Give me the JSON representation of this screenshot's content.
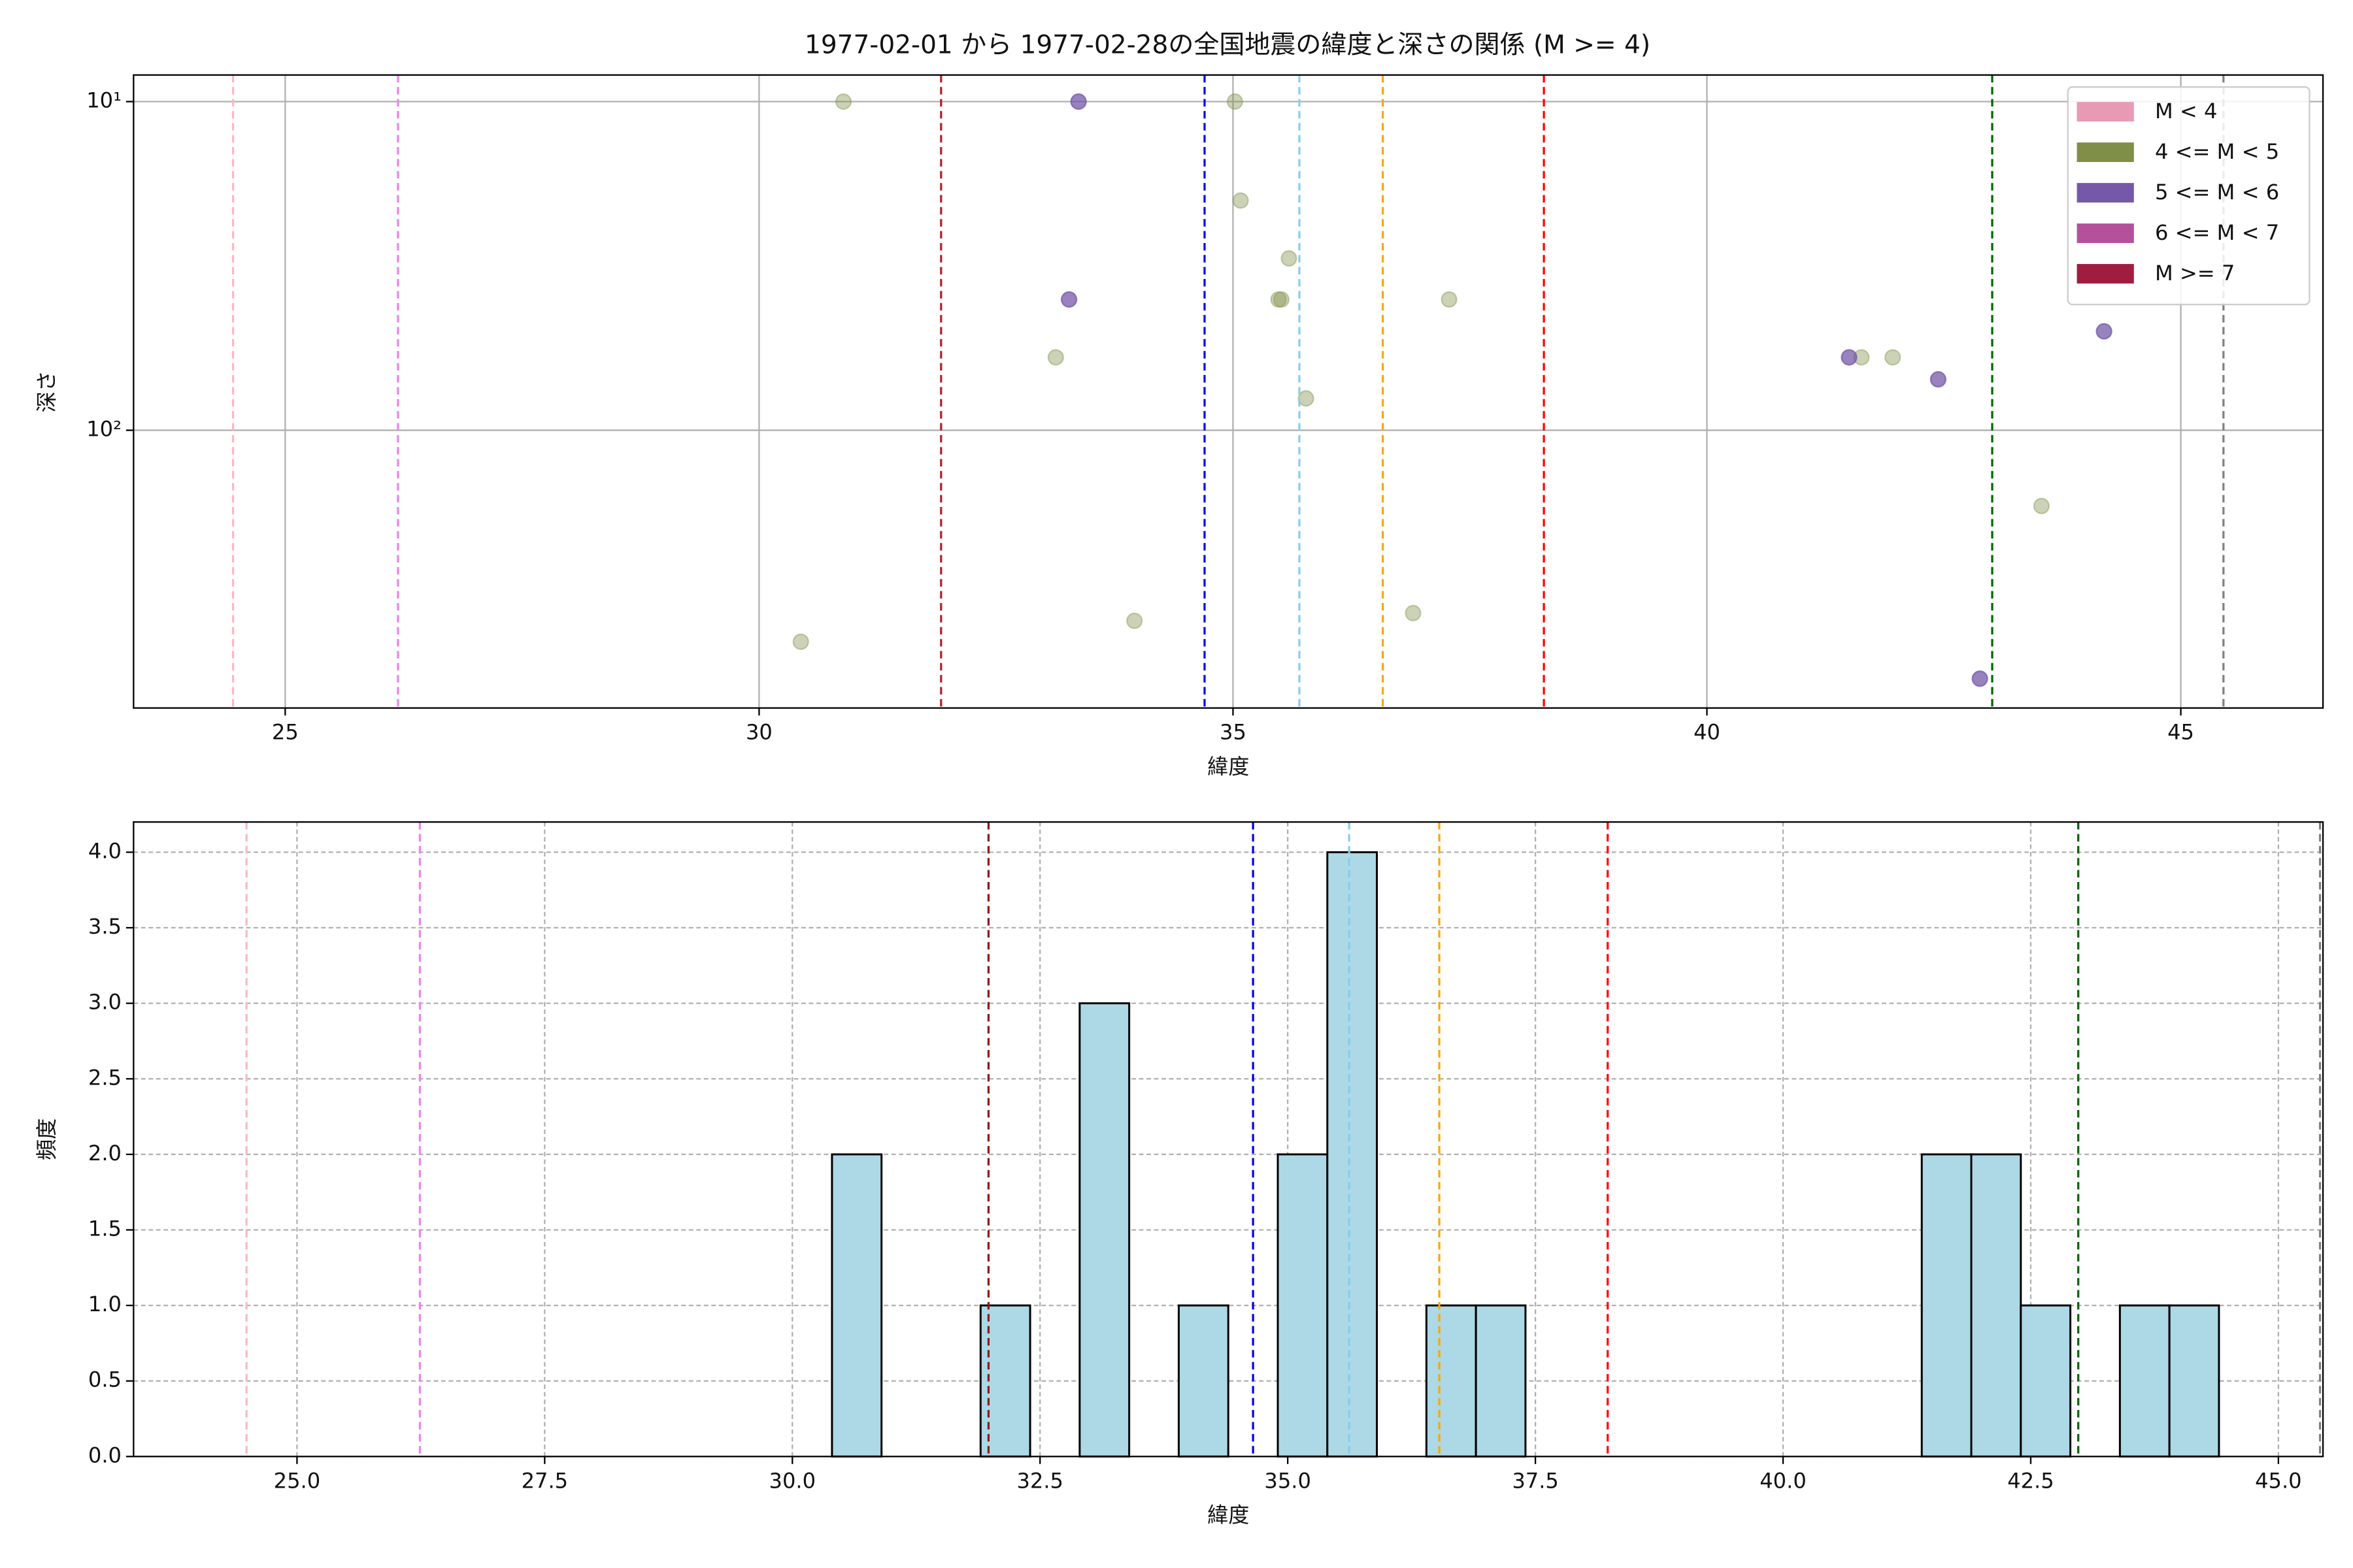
{
  "chart_data": [
    {
      "type": "scatter",
      "title": "1977-02-01 から 1977-02-28の全国地震の緯度と深さの関係 (M >= 4)",
      "xlabel": "緯度",
      "ylabel": "深さ",
      "xlim": [
        23.4,
        46.5
      ],
      "xticks": [
        25,
        30,
        35,
        40,
        45
      ],
      "ylim": [
        8.3,
        700
      ],
      "yscale": "log",
      "yinverted": true,
      "yticks": [
        {
          "value": 10,
          "label": "10¹"
        },
        {
          "value": 100,
          "label": "10²"
        }
      ],
      "grid": true,
      "legend": "upper right",
      "series": [
        {
          "name": "M < 4",
          "color": "#e89ab5",
          "x": [],
          "values": []
        },
        {
          "name": "4 <= M < 5",
          "color": "#7f8f48",
          "x": [
            30.89,
            35.02,
            35.08,
            35.59,
            35.51,
            35.48,
            37.28,
            33.13,
            35.77,
            30.44,
            33.96,
            36.9,
            41.63,
            41.96,
            43.53
          ],
          "values": [
            10,
            10,
            20,
            30,
            40,
            40,
            40,
            60,
            80,
            440,
            380,
            360,
            60,
            60,
            170
          ]
        },
        {
          "name": "5 <= M < 6",
          "color": "#7559a8",
          "x": [
            33.37,
            33.27,
            41.5,
            42.44,
            44.19,
            42.88
          ],
          "values": [
            10,
            40,
            60,
            70,
            50,
            570
          ]
        },
        {
          "name": "6 <= M < 7",
          "color": "#b5509a",
          "x": [],
          "values": []
        },
        {
          "name": "M >= 7",
          "color": "#a01d3f",
          "x": [],
          "values": []
        }
      ],
      "vlines": [
        {
          "x": 24.45,
          "color": "#ffb6c1"
        },
        {
          "x": 26.19,
          "color": "#ee82ee"
        },
        {
          "x": 31.92,
          "color": "#b22222"
        },
        {
          "x": 34.7,
          "color": "#0000ee"
        },
        {
          "x": 35.7,
          "color": "#87ceeb"
        },
        {
          "x": 36.58,
          "color": "#ffa500"
        },
        {
          "x": 38.28,
          "color": "#ff0000"
        },
        {
          "x": 43.01,
          "color": "#006400"
        },
        {
          "x": 45.45,
          "color": "#808080"
        }
      ]
    },
    {
      "type": "histogram",
      "xlabel": "緯度",
      "ylabel": "頻度",
      "xlim": [
        23.35,
        45.45
      ],
      "xticks": [
        {
          "value": 25,
          "label": "25.0"
        },
        27.5,
        {
          "value": 30,
          "label": "30.0"
        },
        32.5,
        {
          "value": 35,
          "label": "35.0"
        },
        37.5,
        {
          "value": 40,
          "label": "40.0"
        },
        42.5,
        {
          "value": 45,
          "label": "45.0"
        }
      ],
      "ylim": [
        0,
        4.2
      ],
      "yticks": [
        {
          "value": 0,
          "label": "0.0"
        },
        0.5,
        {
          "value": 1,
          "label": "1.0"
        },
        1.5,
        {
          "value": 2,
          "label": "2.0"
        },
        2.5,
        {
          "value": 3,
          "label": "3.0"
        },
        3.5,
        {
          "value": 4,
          "label": "4.0"
        }
      ],
      "grid": true,
      "color": "#add8e6",
      "bins": [
        30.4,
        30.9,
        31.4,
        31.9,
        32.4,
        32.9,
        33.4,
        33.9,
        34.4,
        34.9,
        35.4,
        35.9,
        36.4,
        36.9,
        37.4,
        37.9,
        38.4,
        38.9,
        39.4,
        39.9,
        40.4,
        40.9,
        41.4,
        41.9,
        42.4,
        42.9,
        43.4,
        43.9,
        44.4
      ],
      "counts": [
        2,
        0,
        0,
        1,
        0,
        3,
        0,
        1,
        0,
        2,
        4,
        0,
        1,
        1,
        0,
        0,
        0,
        0,
        0,
        0,
        0,
        0,
        2,
        2,
        1,
        0,
        1,
        1
      ],
      "vlines": [
        {
          "x": 24.49,
          "color": "#ffb6c1"
        },
        {
          "x": 26.24,
          "color": "#ee82ee"
        },
        {
          "x": 31.98,
          "color": "#8b1a1a"
        },
        {
          "x": 34.65,
          "color": "#0000ee"
        },
        {
          "x": 35.62,
          "color": "#87ceeb"
        },
        {
          "x": 36.53,
          "color": "#ffa500"
        },
        {
          "x": 38.23,
          "color": "#ff0000"
        },
        {
          "x": 42.98,
          "color": "#006400"
        },
        {
          "x": 45.42,
          "color": "#808080"
        }
      ]
    }
  ]
}
